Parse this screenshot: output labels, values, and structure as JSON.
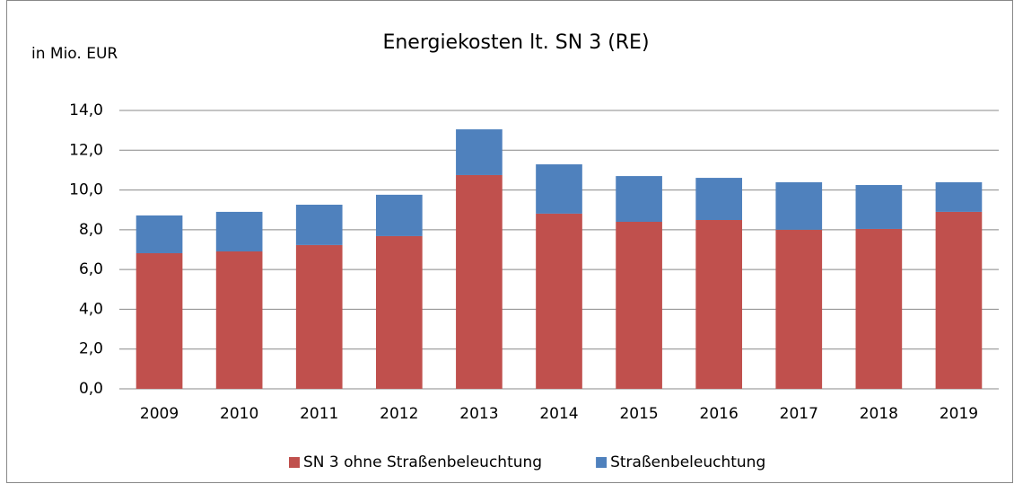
{
  "chart_data": {
    "type": "stacked_bar",
    "title": "Energiekosten lt. SN 3 (RE)",
    "y_label": "in Mio. EUR",
    "categories": [
      "2009",
      "2010",
      "2011",
      "2012",
      "2013",
      "2014",
      "2015",
      "2016",
      "2017",
      "2018",
      "2019"
    ],
    "series": [
      {
        "name": "SN 3 ohne Straßenbeleuchtung",
        "color": "#c0504d",
        "values": [
          6.82,
          6.91,
          7.23,
          7.68,
          10.75,
          8.81,
          8.4,
          8.49,
          8.0,
          8.04,
          8.9
        ]
      },
      {
        "name": "Straßenbeleuchtung",
        "color": "#4f81bd",
        "values": [
          1.9,
          1.99,
          2.03,
          2.08,
          2.3,
          2.48,
          2.3,
          2.12,
          2.39,
          2.21,
          1.49
        ]
      }
    ],
    "ylim": [
      0,
      14
    ],
    "yticks": [
      {
        "value": 0,
        "label": "0,0"
      },
      {
        "value": 2,
        "label": "2,0"
      },
      {
        "value": 4,
        "label": "4,0"
      },
      {
        "value": 6,
        "label": "6,0"
      },
      {
        "value": 8,
        "label": "8,0"
      },
      {
        "value": 10,
        "label": "10,0"
      },
      {
        "value": 12,
        "label": "12,0"
      },
      {
        "value": 14,
        "label": "14,0"
      }
    ],
    "grid": true,
    "legend": "bottom"
  }
}
